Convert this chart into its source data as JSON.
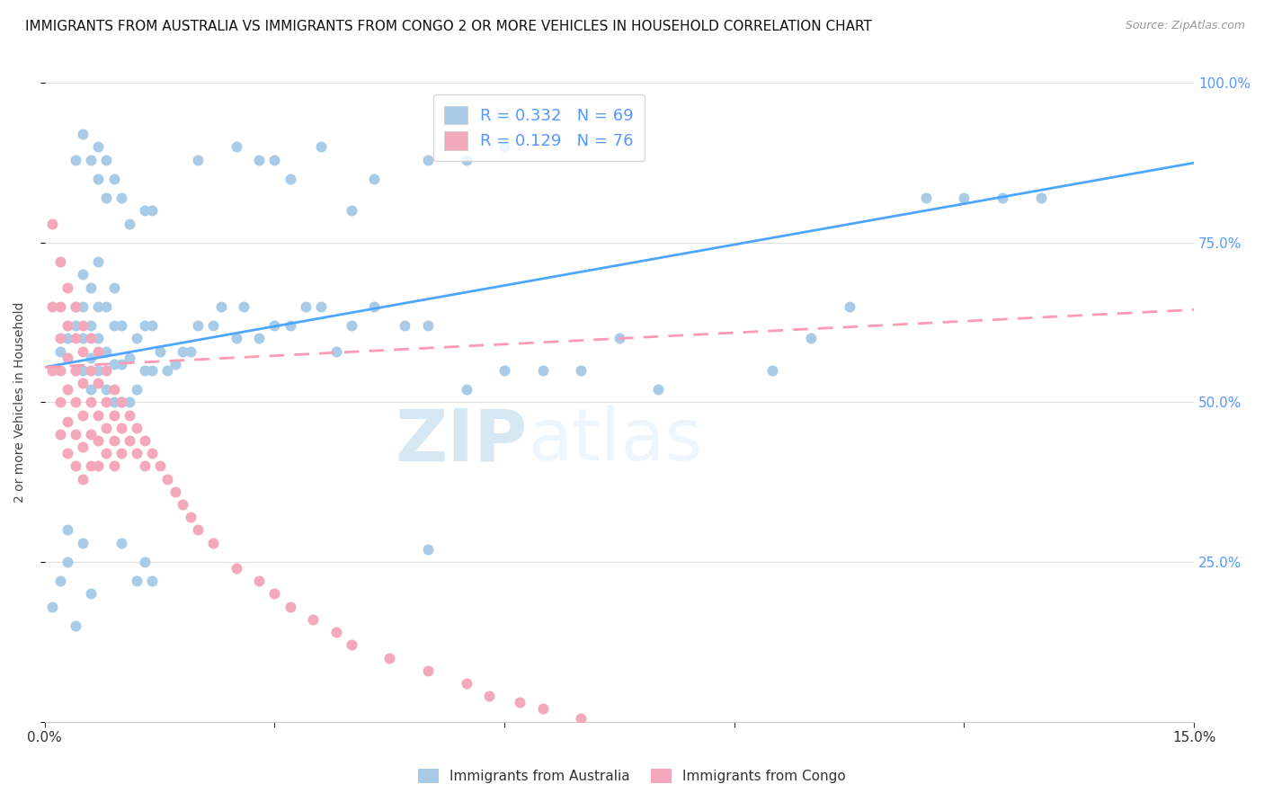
{
  "title": "IMMIGRANTS FROM AUSTRALIA VS IMMIGRANTS FROM CONGO 2 OR MORE VEHICLES IN HOUSEHOLD CORRELATION CHART",
  "source": "Source: ZipAtlas.com",
  "ylabel": "2 or more Vehicles in Household",
  "x_min": 0.0,
  "x_max": 0.15,
  "y_min": 0.0,
  "y_max": 1.0,
  "y_ticks": [
    0.0,
    0.25,
    0.5,
    0.75,
    1.0
  ],
  "y_tick_labels_right": [
    "",
    "25.0%",
    "50.0%",
    "75.0%",
    "100.0%"
  ],
  "australia_color": "#a8cce8",
  "congo_color": "#f4a8bc",
  "australia_line_color": "#4da6ff",
  "congo_line_color": "#ff9ab5",
  "legend_color_1": "#a8cce8",
  "legend_color_2": "#f4a8bc",
  "R_australia": 0.332,
  "N_australia": 69,
  "R_congo": 0.129,
  "N_congo": 76,
  "watermark": "ZIPatlas",
  "background_color": "#ffffff",
  "grid_color": "#e0e0e0",
  "title_fontsize": 11,
  "axis_label_fontsize": 10,
  "tick_fontsize": 11,
  "right_tick_color": "#5599ff",
  "aus_line_y0": 0.555,
  "aus_line_y1": 0.875,
  "congo_line_y0": 0.555,
  "congo_line_y1": 0.645,
  "australia_x": [
    0.001,
    0.002,
    0.003,
    0.004,
    0.004,
    0.004,
    0.005,
    0.005,
    0.005,
    0.005,
    0.006,
    0.006,
    0.006,
    0.006,
    0.007,
    0.007,
    0.007,
    0.007,
    0.008,
    0.008,
    0.008,
    0.009,
    0.009,
    0.009,
    0.009,
    0.01,
    0.01,
    0.01,
    0.011,
    0.011,
    0.012,
    0.012,
    0.013,
    0.013,
    0.014,
    0.014,
    0.015,
    0.016,
    0.017,
    0.018,
    0.019,
    0.02,
    0.022,
    0.023,
    0.025,
    0.026,
    0.028,
    0.03,
    0.032,
    0.034,
    0.036,
    0.038,
    0.04,
    0.043,
    0.047,
    0.05,
    0.055,
    0.06,
    0.065,
    0.07,
    0.075,
    0.08,
    0.095,
    0.1,
    0.105,
    0.115,
    0.12,
    0.125,
    0.13
  ],
  "australia_y": [
    0.18,
    0.58,
    0.6,
    0.55,
    0.62,
    0.65,
    0.55,
    0.6,
    0.65,
    0.7,
    0.52,
    0.57,
    0.62,
    0.68,
    0.55,
    0.6,
    0.65,
    0.72,
    0.52,
    0.58,
    0.65,
    0.5,
    0.56,
    0.62,
    0.68,
    0.5,
    0.56,
    0.62,
    0.5,
    0.57,
    0.52,
    0.6,
    0.55,
    0.62,
    0.55,
    0.62,
    0.58,
    0.55,
    0.56,
    0.58,
    0.58,
    0.62,
    0.62,
    0.65,
    0.6,
    0.65,
    0.6,
    0.62,
    0.62,
    0.65,
    0.65,
    0.58,
    0.62,
    0.65,
    0.62,
    0.62,
    0.52,
    0.55,
    0.55,
    0.55,
    0.6,
    0.52,
    0.55,
    0.6,
    0.65,
    0.82,
    0.82,
    0.82,
    0.82
  ],
  "australia_high_x": [
    0.004,
    0.005,
    0.006,
    0.007,
    0.007,
    0.008,
    0.008,
    0.009,
    0.01,
    0.011,
    0.013,
    0.014,
    0.02,
    0.025,
    0.028,
    0.03,
    0.032,
    0.036,
    0.04,
    0.043,
    0.05,
    0.055,
    0.06
  ],
  "australia_high_y": [
    0.88,
    0.92,
    0.88,
    0.9,
    0.85,
    0.88,
    0.82,
    0.85,
    0.82,
    0.78,
    0.8,
    0.8,
    0.88,
    0.9,
    0.88,
    0.88,
    0.85,
    0.9,
    0.8,
    0.85,
    0.88,
    0.88,
    0.9
  ],
  "australia_low_x": [
    0.002,
    0.003,
    0.003,
    0.004,
    0.005,
    0.006,
    0.01,
    0.012,
    0.013,
    0.014,
    0.05
  ],
  "australia_low_y": [
    0.22,
    0.25,
    0.3,
    0.15,
    0.28,
    0.2,
    0.28,
    0.22,
    0.25,
    0.22,
    0.27
  ],
  "congo_x": [
    0.001,
    0.001,
    0.001,
    0.002,
    0.002,
    0.002,
    0.002,
    0.002,
    0.002,
    0.003,
    0.003,
    0.003,
    0.003,
    0.003,
    0.003,
    0.004,
    0.004,
    0.004,
    0.004,
    0.004,
    0.004,
    0.005,
    0.005,
    0.005,
    0.005,
    0.005,
    0.005,
    0.006,
    0.006,
    0.006,
    0.006,
    0.006,
    0.007,
    0.007,
    0.007,
    0.007,
    0.007,
    0.008,
    0.008,
    0.008,
    0.008,
    0.009,
    0.009,
    0.009,
    0.009,
    0.01,
    0.01,
    0.01,
    0.011,
    0.011,
    0.012,
    0.012,
    0.013,
    0.013,
    0.014,
    0.015,
    0.016,
    0.017,
    0.018,
    0.019,
    0.02,
    0.022,
    0.025,
    0.028,
    0.03,
    0.032,
    0.035,
    0.038,
    0.04,
    0.045,
    0.05,
    0.055,
    0.058,
    0.062,
    0.065,
    0.07
  ],
  "congo_y": [
    0.78,
    0.65,
    0.55,
    0.72,
    0.65,
    0.6,
    0.55,
    0.5,
    0.45,
    0.68,
    0.62,
    0.57,
    0.52,
    0.47,
    0.42,
    0.65,
    0.6,
    0.55,
    0.5,
    0.45,
    0.4,
    0.62,
    0.58,
    0.53,
    0.48,
    0.43,
    0.38,
    0.6,
    0.55,
    0.5,
    0.45,
    0.4,
    0.58,
    0.53,
    0.48,
    0.44,
    0.4,
    0.55,
    0.5,
    0.46,
    0.42,
    0.52,
    0.48,
    0.44,
    0.4,
    0.5,
    0.46,
    0.42,
    0.48,
    0.44,
    0.46,
    0.42,
    0.44,
    0.4,
    0.42,
    0.4,
    0.38,
    0.36,
    0.34,
    0.32,
    0.3,
    0.28,
    0.24,
    0.22,
    0.2,
    0.18,
    0.16,
    0.14,
    0.12,
    0.1,
    0.08,
    0.06,
    0.04,
    0.03,
    0.02,
    0.005
  ]
}
